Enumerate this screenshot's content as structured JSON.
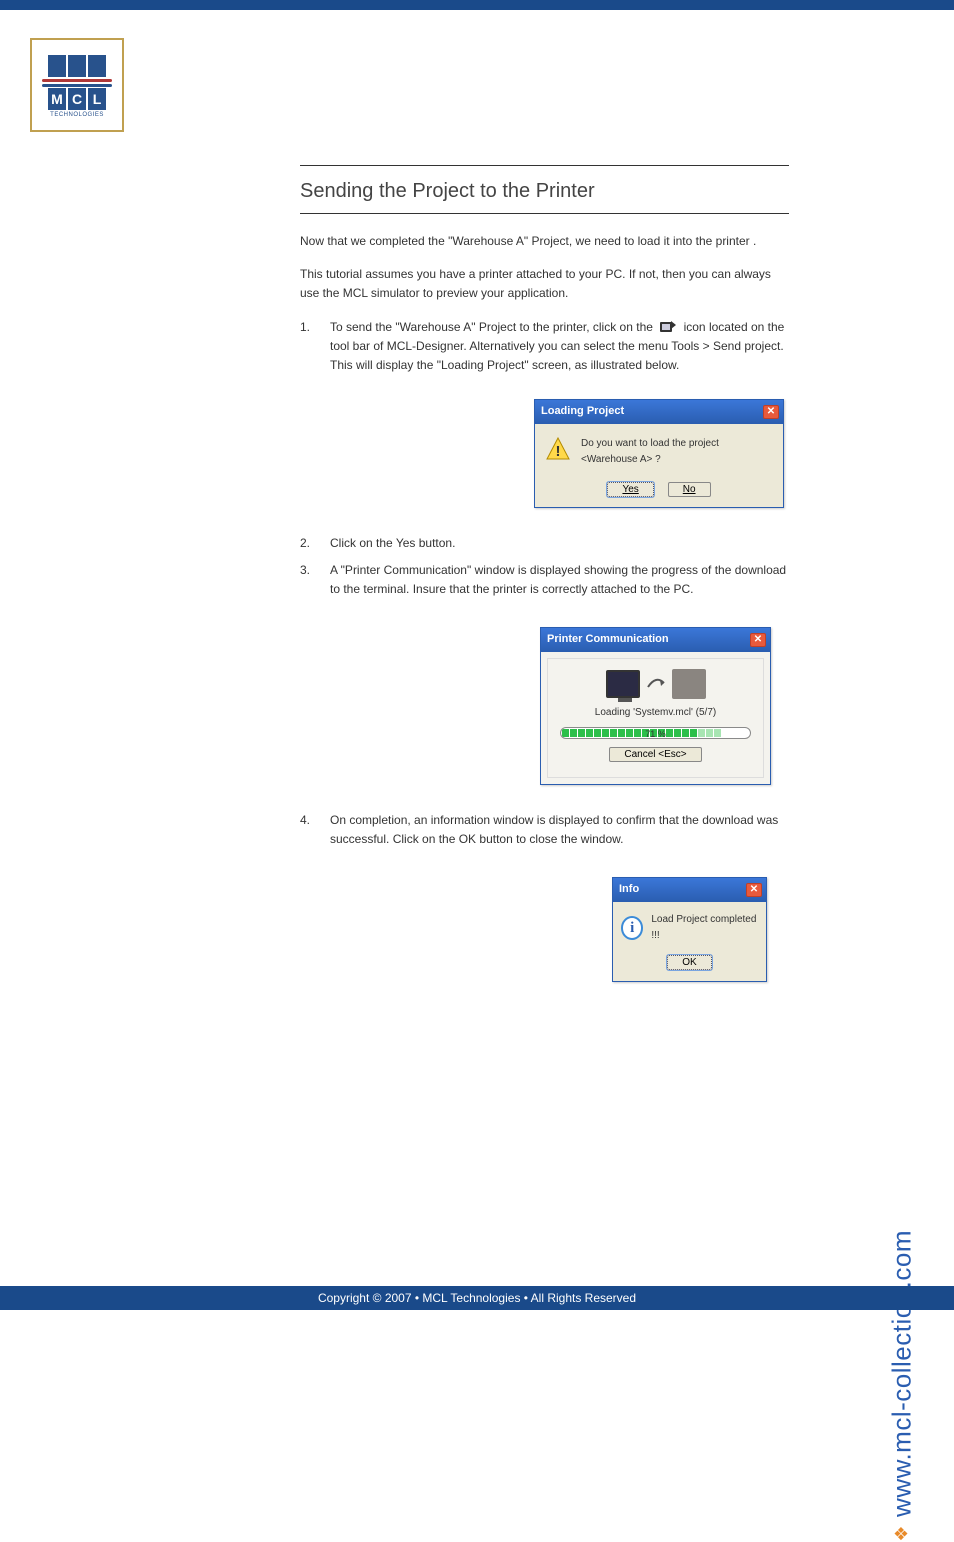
{
  "logo": {
    "letters": [
      "M",
      "C",
      "L"
    ],
    "subtext": "TECHNOLOGIES"
  },
  "section": {
    "title": "Sending the Project to the Printer"
  },
  "paragraphs": {
    "intro1": "Now that we completed the \"Warehouse A\" Project, we need to load it into the printer .",
    "intro2": "This tutorial assumes you have a printer attached to your PC. If not, then you can always use the MCL simulator to preview your application."
  },
  "steps": {
    "s1_num": "1.",
    "s1_text_a": "To send the \"Warehouse A\" Project to the printer, click on the  ",
    "s1_text_b": " icon located on the tool bar of MCL-Designer. Alternatively you can select the menu Tools > Send project. This will display the \"Loading Project\" screen, as illustrated below.",
    "s2_num": "2.",
    "s2_text": "Click on the Yes button.",
    "s3_num": "3.",
    "s3_text": "A \"Printer Communication\" window is displayed showing the progress of the download to the terminal. Insure that the printer is correctly attached to the PC.",
    "s4_num": "4.",
    "s4_text": "On completion, an information window is displayed to confirm that the download was successful. Click on the OK button to close the window."
  },
  "dlg_loading": {
    "title": "Loading Project",
    "message": "Do you want to load the project <Warehouse A> ?",
    "yes": "Yes",
    "no": "No"
  },
  "dlg_printer": {
    "title": "Printer Communication",
    "loading_label": "Loading 'Systemv.mcl' (5/7)",
    "percent": "71 %",
    "cancel": "Cancel <Esc>",
    "progress_fill_pct": 71
  },
  "dlg_info": {
    "title": "Info",
    "message": "Load Project completed !!!",
    "ok": "OK"
  },
  "side_url": "www.mcl-collection.com",
  "footer": "Copyright © 2007 • MCL Technologies • All Rights Reserved",
  "colors": {
    "header_blue": "#1a4a8a",
    "link_blue": "#2a5db0",
    "progress_green": "#2bbf4a",
    "dialog_bg": "#ece9d8"
  }
}
